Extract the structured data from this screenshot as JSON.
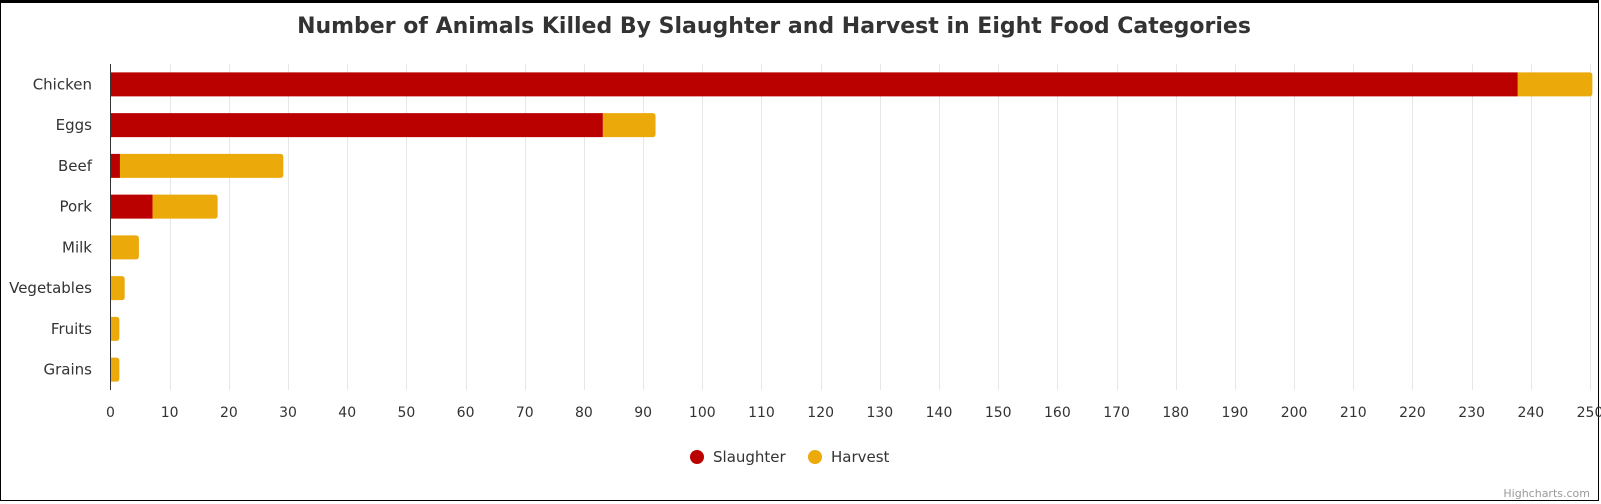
{
  "chart_data": {
    "type": "bar",
    "orientation": "horizontal",
    "stacked": true,
    "title": "Number of Animals Killed By Slaughter and Harvest in Eight Food Categories",
    "categories": [
      "Chicken",
      "Eggs",
      "Beef",
      "Pork",
      "Milk",
      "Vegetables",
      "Fruits",
      "Grains"
    ],
    "series": [
      {
        "name": "Slaughter",
        "color": "#bb0000",
        "values": [
          237.8,
          83.2,
          1.6,
          7.1,
          0,
          0,
          0,
          0
        ]
      },
      {
        "name": "Harvest",
        "color": "#eba90a",
        "values": [
          12.6,
          8.9,
          27.6,
          11.0,
          4.8,
          2.4,
          1.5,
          1.5
        ]
      }
    ],
    "xlim": [
      0,
      250
    ],
    "xticks": [
      0,
      10,
      20,
      30,
      40,
      50,
      60,
      70,
      80,
      90,
      100,
      110,
      120,
      130,
      140,
      150,
      160,
      170,
      180,
      190,
      200,
      210,
      220,
      230,
      240,
      250
    ],
    "grid": true,
    "legend_position": "bottom-center"
  },
  "credits": "Highcharts.com"
}
